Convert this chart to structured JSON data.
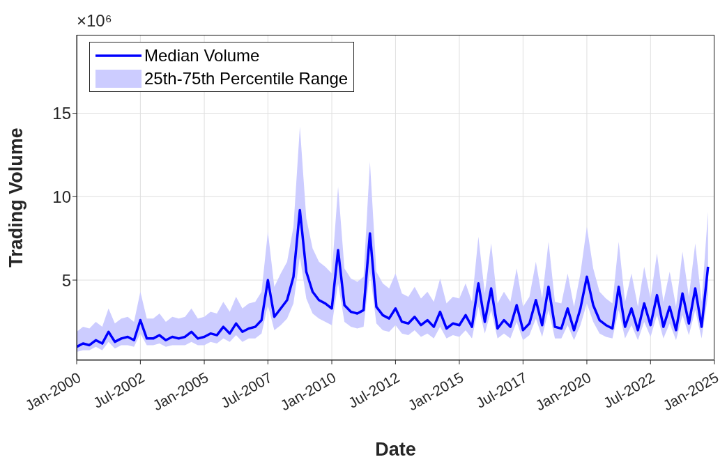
{
  "chart_data": {
    "type": "line",
    "xlabel": "Date",
    "ylabel": "Trading Volume",
    "annotations": [
      "×10⁶",
      "25th-75th Percentile Range"
    ],
    "x": [
      "2000-01",
      "2000-04",
      "2000-07",
      "2000-10",
      "2001-01",
      "2001-04",
      "2001-07",
      "2001-10",
      "2002-01",
      "2002-04",
      "2002-07",
      "2002-10",
      "2003-01",
      "2003-04",
      "2003-07",
      "2003-10",
      "2004-01",
      "2004-04",
      "2004-07",
      "2004-10",
      "2005-01",
      "2005-04",
      "2005-07",
      "2005-10",
      "2006-01",
      "2006-04",
      "2006-07",
      "2006-10",
      "2007-01",
      "2007-04",
      "2007-07",
      "2007-10",
      "2008-01",
      "2008-04",
      "2008-07",
      "2008-10",
      "2009-01",
      "2009-04",
      "2009-07",
      "2009-10",
      "2010-01",
      "2010-04",
      "2010-07",
      "2010-10",
      "2011-01",
      "2011-04",
      "2011-07",
      "2011-10",
      "2012-01",
      "2012-04",
      "2012-07",
      "2012-10",
      "2013-01",
      "2013-04",
      "2013-07",
      "2013-10",
      "2014-01",
      "2014-04",
      "2014-07",
      "2014-10",
      "2015-01",
      "2015-04",
      "2015-07",
      "2015-10",
      "2016-01",
      "2016-04",
      "2016-07",
      "2016-10",
      "2017-01",
      "2017-04",
      "2017-07",
      "2017-10",
      "2018-01",
      "2018-04",
      "2018-07",
      "2018-10",
      "2019-01",
      "2019-04",
      "2019-07",
      "2019-10",
      "2020-01",
      "2020-04",
      "2020-07",
      "2020-10",
      "2021-01",
      "2021-04",
      "2021-07",
      "2021-10",
      "2022-01",
      "2022-04",
      "2022-07",
      "2022-10",
      "2023-01",
      "2023-04",
      "2023-07",
      "2023-10",
      "2024-01",
      "2024-04",
      "2024-07",
      "2024-10"
    ],
    "series": [
      {
        "name": "Median Volume",
        "color": "#0000ff",
        "values": [
          1.0,
          1.2,
          1.1,
          1.4,
          1.2,
          1.9,
          1.3,
          1.5,
          1.6,
          1.4,
          2.6,
          1.5,
          1.5,
          1.7,
          1.4,
          1.6,
          1.5,
          1.6,
          1.9,
          1.5,
          1.6,
          1.8,
          1.7,
          2.2,
          1.8,
          2.4,
          1.9,
          2.1,
          2.2,
          2.6,
          5.0,
          2.8,
          3.3,
          3.8,
          5.2,
          9.2,
          5.5,
          4.3,
          3.8,
          3.6,
          3.3,
          6.8,
          3.5,
          3.1,
          3.0,
          3.2,
          7.8,
          3.4,
          2.9,
          2.7,
          3.3,
          2.5,
          2.4,
          2.8,
          2.3,
          2.6,
          2.2,
          3.1,
          2.1,
          2.4,
          2.3,
          2.9,
          2.2,
          4.8,
          2.5,
          4.5,
          2.1,
          2.6,
          2.2,
          3.5,
          2.0,
          2.4,
          3.8,
          2.3,
          4.6,
          2.2,
          2.1,
          3.3,
          2.0,
          3.3,
          5.2,
          3.5,
          2.6,
          2.3,
          2.1,
          4.6,
          2.2,
          3.3,
          2.0,
          3.6,
          2.3,
          4.1,
          2.2,
          3.4,
          2.0,
          4.2,
          2.4,
          4.5,
          2.2,
          5.8
        ],
        "lower": [
          0.7,
          0.8,
          0.8,
          1.0,
          0.8,
          1.3,
          0.9,
          1.1,
          1.1,
          1.0,
          1.8,
          1.1,
          1.1,
          1.2,
          1.0,
          1.1,
          1.1,
          1.1,
          1.3,
          1.1,
          1.1,
          1.3,
          1.2,
          1.5,
          1.3,
          1.7,
          1.3,
          1.5,
          1.5,
          1.8,
          3.5,
          2.0,
          2.3,
          2.7,
          3.6,
          6.4,
          3.9,
          3.0,
          2.7,
          2.5,
          2.3,
          4.8,
          2.5,
          2.2,
          2.1,
          2.2,
          5.5,
          2.4,
          2.0,
          1.9,
          2.3,
          1.8,
          1.7,
          2.0,
          1.6,
          1.8,
          1.5,
          2.2,
          1.5,
          1.7,
          1.6,
          2.0,
          1.5,
          3.4,
          1.8,
          3.2,
          1.5,
          1.8,
          1.5,
          2.5,
          1.4,
          1.7,
          2.7,
          1.6,
          3.2,
          1.5,
          1.5,
          2.3,
          1.4,
          2.3,
          3.6,
          2.5,
          1.8,
          1.6,
          1.5,
          3.2,
          1.5,
          2.3,
          1.4,
          2.5,
          1.6,
          2.9,
          1.5,
          2.4,
          1.4,
          2.9,
          1.7,
          3.2,
          1.5,
          4.1
        ],
        "upper": [
          1.9,
          2.2,
          2.1,
          2.5,
          2.2,
          3.3,
          2.4,
          2.7,
          2.8,
          2.5,
          4.3,
          2.7,
          2.7,
          3.0,
          2.5,
          2.8,
          2.7,
          2.8,
          3.3,
          2.7,
          2.8,
          3.1,
          3.0,
          3.7,
          3.1,
          4.0,
          3.3,
          3.6,
          3.7,
          4.3,
          7.9,
          4.6,
          5.4,
          6.1,
          8.2,
          14.2,
          8.7,
          6.9,
          6.1,
          5.8,
          5.4,
          10.6,
          5.7,
          5.1,
          4.9,
          5.2,
          12.1,
          5.5,
          4.8,
          4.5,
          5.4,
          4.2,
          4.0,
          4.6,
          3.9,
          4.3,
          3.7,
          5.1,
          3.6,
          4.0,
          3.9,
          4.8,
          3.7,
          7.6,
          4.2,
          7.2,
          3.6,
          4.3,
          3.7,
          5.7,
          3.4,
          4.0,
          6.1,
          3.9,
          7.3,
          3.7,
          3.6,
          5.4,
          3.4,
          5.4,
          8.2,
          5.7,
          4.3,
          3.9,
          3.6,
          7.3,
          3.7,
          5.4,
          3.4,
          5.8,
          3.9,
          6.6,
          3.7,
          5.5,
          3.4,
          6.7,
          4.0,
          7.2,
          3.7,
          9.1
        ]
      }
    ],
    "xlim": [
      "2000-01",
      "2025-01"
    ],
    "xticks": [
      {
        "value": "2000-01",
        "label": "Jan-2000"
      },
      {
        "value": "2002-07",
        "label": "Jul-2002"
      },
      {
        "value": "2005-01",
        "label": "Jan-2005"
      },
      {
        "value": "2007-07",
        "label": "Jul-2007"
      },
      {
        "value": "2010-01",
        "label": "Jan-2010"
      },
      {
        "value": "2012-07",
        "label": "Jul-2012"
      },
      {
        "value": "2015-01",
        "label": "Jan-2015"
      },
      {
        "value": "2017-07",
        "label": "Jul-2017"
      },
      {
        "value": "2020-01",
        "label": "Jan-2020"
      },
      {
        "value": "2022-07",
        "label": "Jul-2022"
      },
      {
        "value": "2025-01",
        "label": "Jan-2025"
      }
    ],
    "ylim": [
      0.2,
      19.7
    ],
    "yticks": [
      5,
      10,
      15
    ],
    "grid": true,
    "legend": "top left"
  }
}
